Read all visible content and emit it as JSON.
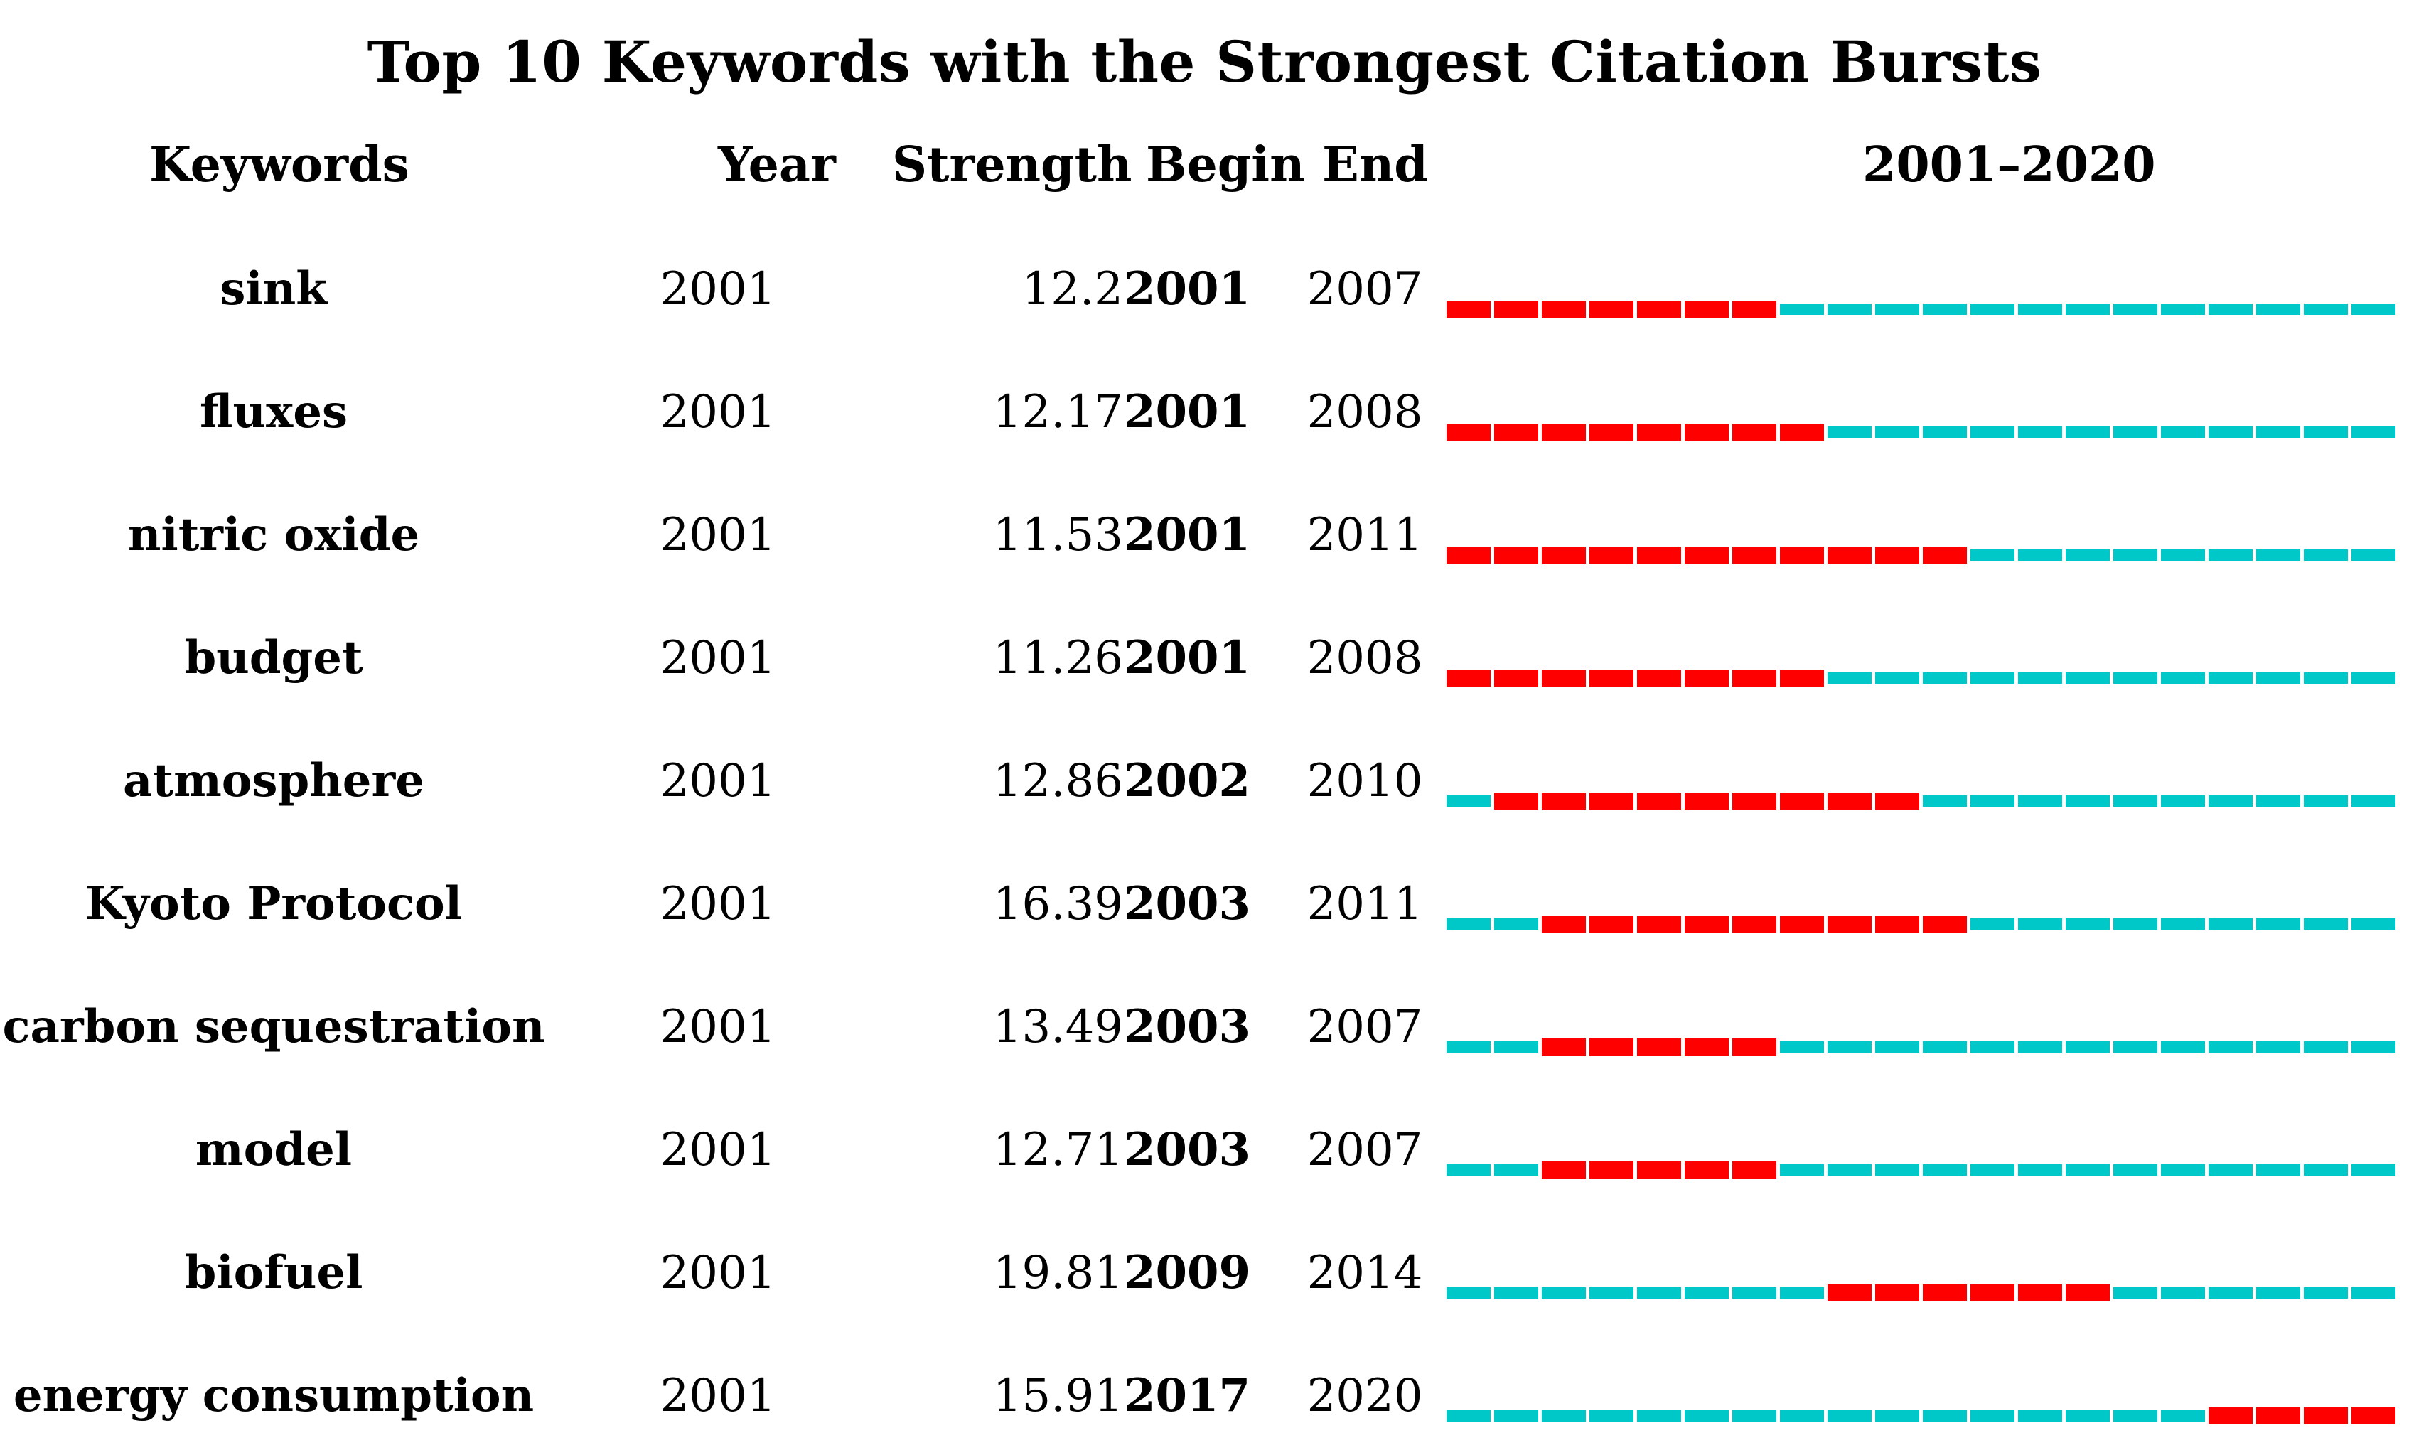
{
  "title": "Top 10 Keywords with the Strongest Citation Bursts",
  "headers": {
    "keywords": "Keywords",
    "year": "Year",
    "strength": "Strength",
    "begin": "Begin",
    "end": "End",
    "range": "2001–2020"
  },
  "colors": {
    "burst": "#ff0000",
    "baseline": "#00c8c8"
  },
  "chart_data": {
    "type": "table",
    "range_start": 2001,
    "range_end": 2020,
    "rows": [
      {
        "keyword": "sink",
        "year": "2001",
        "strength": "12.2",
        "begin": "2001",
        "end": "2007"
      },
      {
        "keyword": "fluxes",
        "year": "2001",
        "strength": "12.17",
        "begin": "2001",
        "end": "2008"
      },
      {
        "keyword": "nitric oxide",
        "year": "2001",
        "strength": "11.53",
        "begin": "2001",
        "end": "2011"
      },
      {
        "keyword": "budget",
        "year": "2001",
        "strength": "11.26",
        "begin": "2001",
        "end": "2008"
      },
      {
        "keyword": "atmosphere",
        "year": "2001",
        "strength": "12.86",
        "begin": "2002",
        "end": "2010"
      },
      {
        "keyword": "Kyoto Protocol",
        "year": "2001",
        "strength": "16.39",
        "begin": "2003",
        "end": "2011"
      },
      {
        "keyword": "carbon sequestration",
        "year": "2001",
        "strength": "13.49",
        "begin": "2003",
        "end": "2007"
      },
      {
        "keyword": "model",
        "year": "2001",
        "strength": "12.71",
        "begin": "2003",
        "end": "2007"
      },
      {
        "keyword": "biofuel",
        "year": "2001",
        "strength": "19.81",
        "begin": "2009",
        "end": "2014"
      },
      {
        "keyword": "energy consumption",
        "year": "2001",
        "strength": "15.91",
        "begin": "2017",
        "end": "2020"
      }
    ]
  }
}
